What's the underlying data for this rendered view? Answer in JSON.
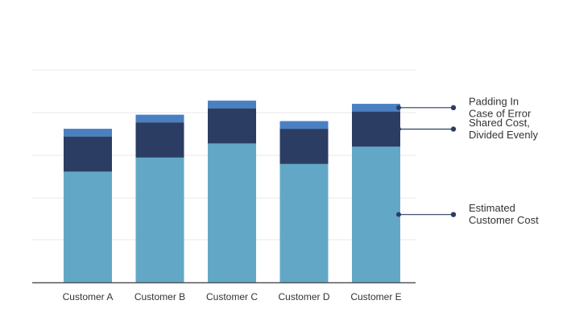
{
  "chart_data": {
    "type": "bar",
    "stacked": true,
    "categories": [
      "Customer A",
      "Customer B",
      "Customer C",
      "Customer D",
      "Customer E"
    ],
    "series": [
      {
        "name": "Estimated Customer Cost",
        "color": "#62a8c6",
        "values": [
          173,
          195,
          217,
          185,
          212
        ]
      },
      {
        "name": "Shared Cost, Divided Evenly",
        "color": "#2c3d63",
        "values": [
          55,
          55,
          55,
          55,
          55
        ]
      },
      {
        "name": "Padding In Case of Error",
        "color": "#4a80c2",
        "values": [
          12,
          12,
          12,
          12,
          12
        ]
      }
    ],
    "ylim": [
      0,
      300
    ],
    "grid": true,
    "legend": "right, callouts pointing to the last bar",
    "annotations": [
      {
        "series": "Padding In Case of Error",
        "lines": [
          "Padding In",
          "Case of Error"
        ]
      },
      {
        "series": "Shared Cost, Divided Evenly",
        "lines": [
          "Shared Cost,",
          "Divided Evenly"
        ]
      },
      {
        "series": "Estimated Customer Cost",
        "lines": [
          "Estimated",
          "Customer Cost"
        ]
      }
    ],
    "colors": {
      "gridline": "#e8e8e8",
      "axis": "#555555",
      "callout_line": "#2c3d63"
    }
  }
}
